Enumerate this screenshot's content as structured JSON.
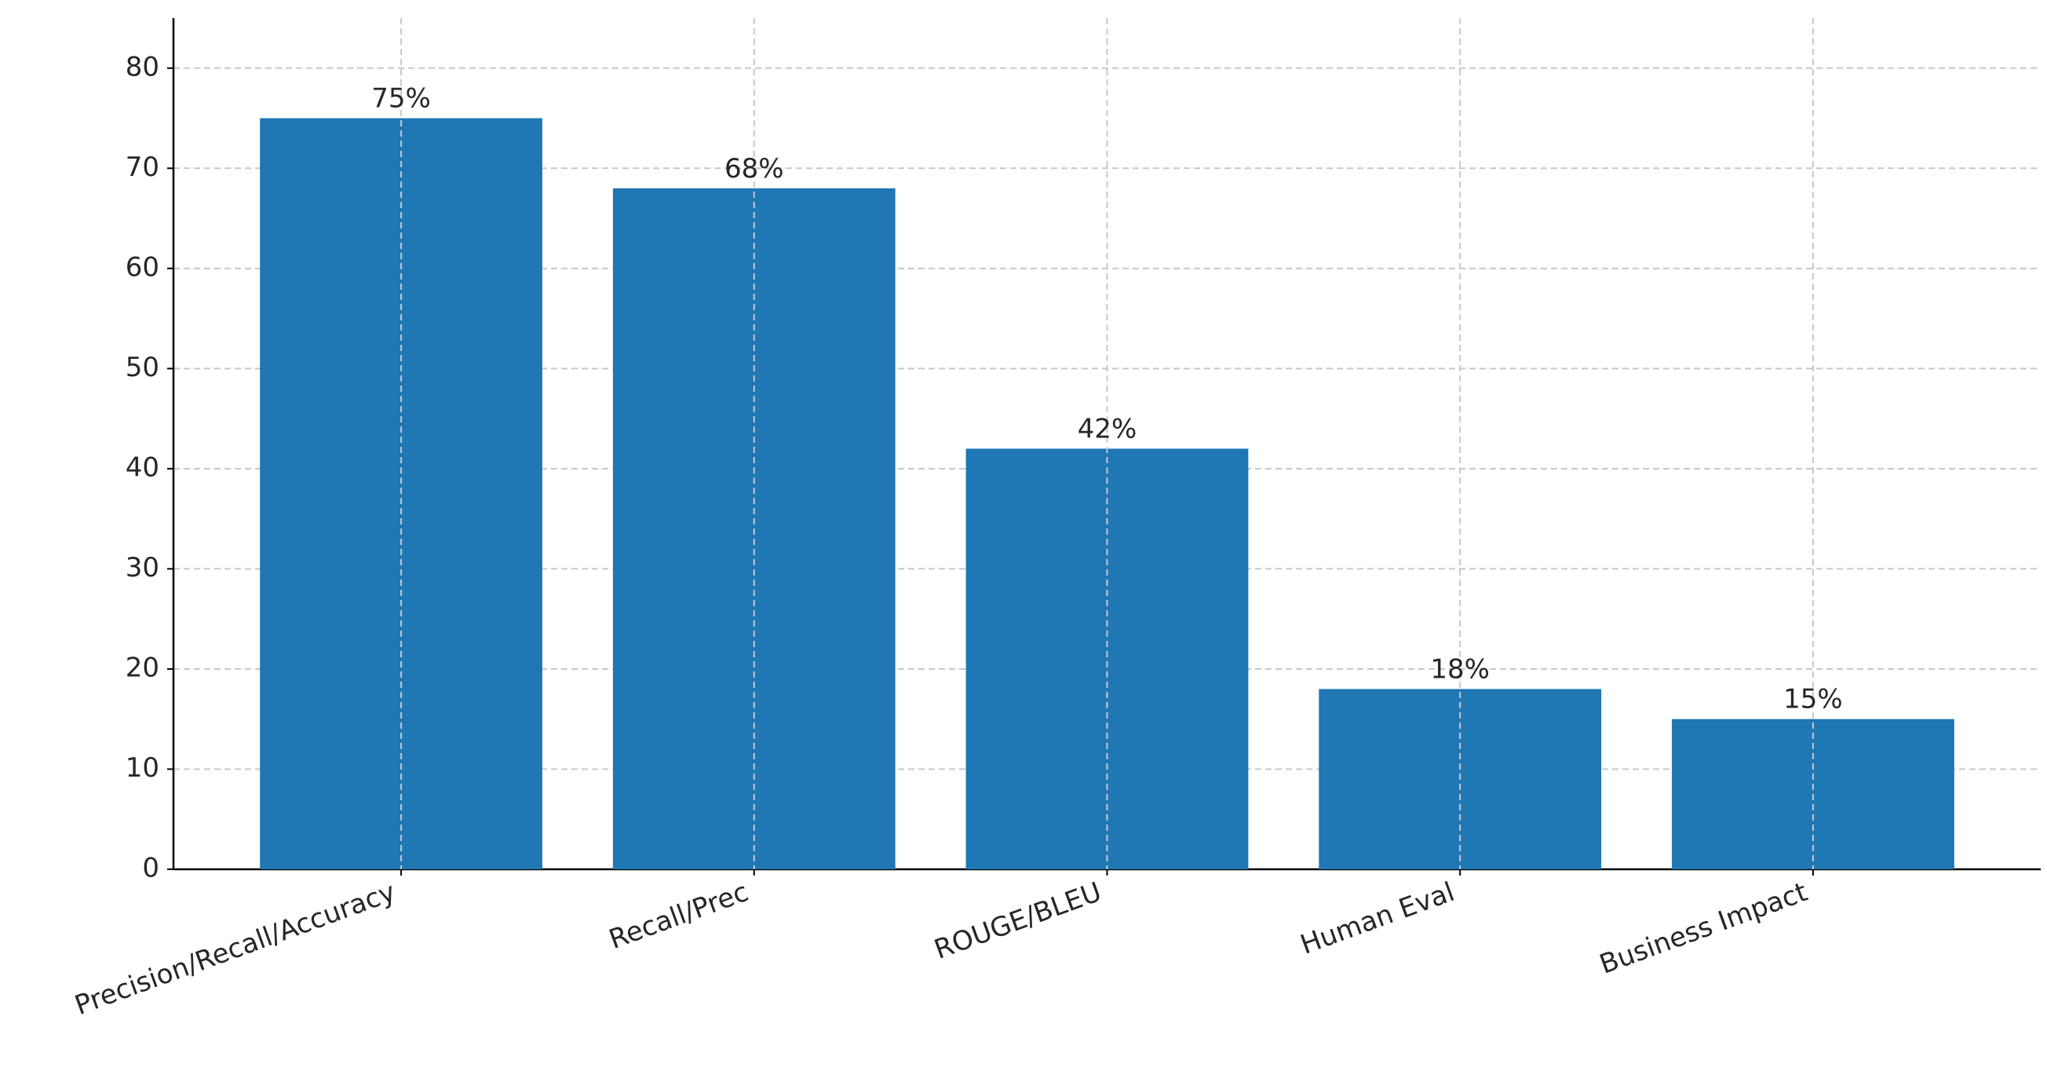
{
  "chart_data": {
    "type": "bar",
    "categories": [
      "Precision/Recall/Accuracy",
      "Recall/Prec",
      "ROUGE/BLEU",
      "Human Eval",
      "Business Impact"
    ],
    "values": [
      75,
      68,
      42,
      18,
      15
    ],
    "value_labels": [
      "75%",
      "68%",
      "42%",
      "18%",
      "15%"
    ],
    "color": "#1f77b4",
    "ylim": [
      0,
      85
    ],
    "yticks": [
      0,
      10,
      20,
      30,
      40,
      50,
      60,
      70,
      80
    ],
    "grid": true
  }
}
